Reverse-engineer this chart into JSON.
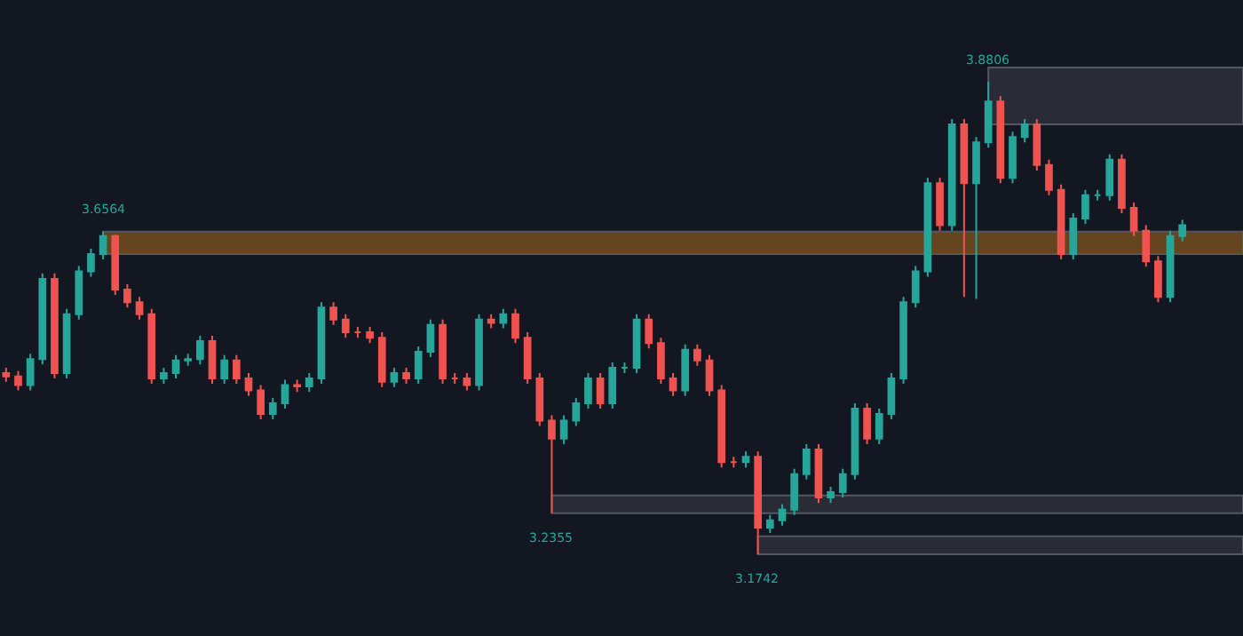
{
  "chart_data": {
    "type": "candlestick",
    "tick_labels": false,
    "categories": [
      null,
      null,
      null,
      null,
      null,
      null,
      null,
      null,
      null,
      null,
      null,
      null,
      null,
      null,
      null,
      null,
      null,
      null,
      null,
      null,
      null,
      null,
      null,
      null,
      null,
      null,
      null,
      null,
      null,
      null,
      null,
      null,
      null,
      null,
      null,
      null,
      null,
      null,
      null,
      null,
      null,
      null,
      null,
      null,
      null,
      null,
      null,
      null,
      null,
      null,
      null,
      null,
      null,
      null,
      null,
      null,
      null,
      null,
      null,
      null,
      null,
      null,
      null,
      null,
      null,
      null,
      null,
      null,
      null,
      null,
      null,
      null,
      null,
      null,
      null,
      null,
      null,
      null,
      null,
      null,
      null,
      null,
      null,
      null,
      null,
      null,
      null,
      null,
      null,
      null,
      null,
      null,
      null,
      null,
      null,
      null,
      null,
      null
    ],
    "ohlc": [
      [
        3.445,
        3.453,
        3.432,
        3.44
      ],
      [
        3.44,
        3.448,
        3.419,
        3.427
      ],
      [
        3.427,
        3.474,
        3.419,
        3.466
      ],
      [
        3.466,
        3.594,
        3.458,
        3.586
      ],
      [
        3.586,
        3.594,
        3.437,
        3.445
      ],
      [
        3.445,
        3.541,
        3.437,
        3.533
      ],
      [
        3.533,
        3.605,
        3.525,
        3.597
      ],
      [
        3.597,
        3.631,
        3.589,
        3.623
      ],
      [
        3.623,
        3.6564,
        3.615,
        3.65
      ],
      [
        3.65,
        3.652,
        3.562,
        3.57
      ],
      [
        3.57,
        3.578,
        3.543,
        3.551
      ],
      [
        3.551,
        3.559,
        3.525,
        3.533
      ],
      [
        3.533,
        3.541,
        3.429,
        3.437
      ],
      [
        3.437,
        3.453,
        3.429,
        3.445
      ],
      [
        3.445,
        3.472,
        3.437,
        3.464
      ],
      [
        3.464,
        3.474,
        3.456,
        3.466
      ],
      [
        3.466,
        3.501,
        3.458,
        3.493
      ],
      [
        3.493,
        3.501,
        3.429,
        3.437
      ],
      [
        3.437,
        3.472,
        3.429,
        3.464
      ],
      [
        3.464,
        3.472,
        3.429,
        3.437
      ],
      [
        3.437,
        3.445,
        3.411,
        3.419
      ],
      [
        3.419,
        3.427,
        3.376,
        3.384
      ],
      [
        3.384,
        3.408,
        3.376,
        3.4
      ],
      [
        3.4,
        3.435,
        3.392,
        3.427
      ],
      [
        3.427,
        3.435,
        3.417,
        3.425
      ],
      [
        3.425,
        3.445,
        3.417,
        3.437
      ],
      [
        3.437,
        3.551,
        3.429,
        3.543
      ],
      [
        3.543,
        3.551,
        3.517,
        3.525
      ],
      [
        3.525,
        3.533,
        3.498,
        3.506
      ],
      [
        3.506,
        3.514,
        3.498,
        3.506
      ],
      [
        3.506,
        3.514,
        3.49,
        3.498
      ],
      [
        3.498,
        3.506,
        3.424,
        3.432
      ],
      [
        3.432,
        3.453,
        3.424,
        3.445
      ],
      [
        3.445,
        3.453,
        3.429,
        3.437
      ],
      [
        3.437,
        3.485,
        3.429,
        3.477
      ],
      [
        3.477,
        3.525,
        3.469,
        3.517
      ],
      [
        3.517,
        3.525,
        3.429,
        3.437
      ],
      [
        3.437,
        3.445,
        3.429,
        3.437
      ],
      [
        3.437,
        3.445,
        3.419,
        3.427
      ],
      [
        3.427,
        3.533,
        3.419,
        3.525
      ],
      [
        3.525,
        3.533,
        3.512,
        3.52
      ],
      [
        3.52,
        3.541,
        3.512,
        3.533
      ],
      [
        3.533,
        3.541,
        3.49,
        3.498
      ],
      [
        3.498,
        3.506,
        3.429,
        3.437
      ],
      [
        3.437,
        3.445,
        3.366,
        3.374
      ],
      [
        3.374,
        3.382,
        3.2355,
        3.347
      ],
      [
        3.347,
        3.382,
        3.339,
        3.374
      ],
      [
        3.374,
        3.408,
        3.366,
        3.4
      ],
      [
        3.4,
        3.445,
        3.392,
        3.437
      ],
      [
        3.437,
        3.445,
        3.392,
        3.4
      ],
      [
        3.4,
        3.461,
        3.392,
        3.453
      ],
      [
        3.453,
        3.461,
        3.445,
        3.453
      ],
      [
        3.453,
        3.533,
        3.445,
        3.525
      ],
      [
        3.525,
        3.533,
        3.482,
        3.49
      ],
      [
        3.49,
        3.498,
        3.429,
        3.437
      ],
      [
        3.437,
        3.445,
        3.411,
        3.419
      ],
      [
        3.419,
        3.488,
        3.411,
        3.48
      ],
      [
        3.48,
        3.488,
        3.456,
        3.464
      ],
      [
        3.464,
        3.472,
        3.411,
        3.419
      ],
      [
        3.419,
        3.427,
        3.304,
        3.312
      ],
      [
        3.312,
        3.32,
        3.304,
        3.312
      ],
      [
        3.312,
        3.328,
        3.304,
        3.32
      ],
      [
        3.32,
        3.328,
        3.1742,
        3.214
      ],
      [
        3.214,
        3.233,
        3.206,
        3.225
      ],
      [
        3.225,
        3.249,
        3.217,
        3.241
      ],
      [
        3.241,
        3.302,
        3.233,
        3.294
      ],
      [
        3.294,
        3.339,
        3.286,
        3.331
      ],
      [
        3.331,
        3.339,
        3.251,
        3.259
      ],
      [
        3.259,
        3.275,
        3.251,
        3.267
      ],
      [
        3.267,
        3.302,
        3.259,
        3.294
      ],
      [
        3.294,
        3.4,
        3.286,
        3.392
      ],
      [
        3.392,
        3.4,
        3.339,
        3.347
      ],
      [
        3.347,
        3.392,
        3.339,
        3.384
      ],
      [
        3.384,
        3.445,
        3.376,
        3.437
      ],
      [
        3.437,
        3.559,
        3.429,
        3.551
      ],
      [
        3.551,
        3.605,
        3.543,
        3.597
      ],
      [
        3.597,
        3.737,
        3.589,
        3.729
      ],
      [
        3.729,
        3.737,
        3.658,
        3.666
      ],
      [
        3.666,
        3.825,
        3.658,
        3.817
      ],
      [
        3.817,
        3.825,
        3.559,
        3.729
      ],
      [
        3.729,
        3.798,
        3.556,
        3.79
      ],
      [
        3.79,
        3.8806,
        3.782,
        3.851
      ],
      [
        3.851,
        3.859,
        3.729,
        3.737
      ],
      [
        3.737,
        3.806,
        3.729,
        3.798
      ],
      [
        3.798,
        3.825,
        3.79,
        3.817
      ],
      [
        3.817,
        3.825,
        3.748,
        3.756
      ],
      [
        3.756,
        3.764,
        3.711,
        3.719
      ],
      [
        3.719,
        3.727,
        3.615,
        3.623
      ],
      [
        3.623,
        3.684,
        3.615,
        3.676
      ],
      [
        3.676,
        3.719,
        3.668,
        3.711
      ],
      [
        3.711,
        3.719,
        3.703,
        3.711
      ],
      [
        3.711,
        3.772,
        3.703,
        3.764
      ],
      [
        3.764,
        3.772,
        3.684,
        3.692
      ],
      [
        3.692,
        3.7,
        3.65,
        3.658
      ],
      [
        3.658,
        3.666,
        3.604,
        3.612
      ],
      [
        3.612,
        3.62,
        3.551,
        3.559
      ],
      [
        3.559,
        3.658,
        3.551,
        3.65
      ],
      [
        3.65,
        3.674,
        3.642,
        3.666
      ]
    ],
    "bands": [
      {
        "axis": "y",
        "from": 3.623,
        "to": 3.6564,
        "color": "#6e4a1f"
      },
      {
        "axis": "y",
        "from": 3.817,
        "to": 3.902,
        "color": "#2c2f3a"
      },
      {
        "axis": "y",
        "from": 3.2355,
        "to": 3.262,
        "color": "#2c2f3a"
      },
      {
        "axis": "y",
        "from": 3.1742,
        "to": 3.201,
        "color": "#2c2f3a"
      }
    ],
    "annotations": [
      {
        "text": "3.6564",
        "y": 3.6564
      },
      {
        "text": "3.2355",
        "y": 3.2355
      },
      {
        "text": "3.1742",
        "y": 3.1742
      },
      {
        "text": "3.8806",
        "y": 3.8806
      }
    ]
  }
}
